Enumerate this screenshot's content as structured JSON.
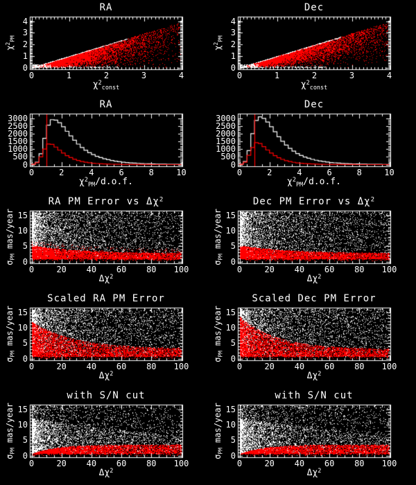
{
  "palette": {
    "background": "#000000",
    "foreground": "#ffffff",
    "highlight": "#ff0000"
  },
  "chart_data": [
    {
      "id": "ra-chi2-scatter",
      "type": "scatter",
      "title_parts": [
        {
          "t": "RA"
        }
      ],
      "xlabel_parts": [
        {
          "t": "χ"
        },
        {
          "sup": "2"
        },
        {
          "sub": "const"
        }
      ],
      "ylabel_parts": [
        {
          "t": "χ"
        },
        {
          "sup": "2"
        },
        {
          "sub": "PM"
        }
      ],
      "xlim": [
        0,
        4
      ],
      "ylim": [
        0,
        4
      ],
      "xticks": [
        0,
        1,
        2,
        3,
        4
      ],
      "yticks": [
        0,
        1,
        2,
        3,
        4
      ],
      "x_minor": 0.1,
      "y_minor": 0.1,
      "clouds": [
        {
          "kind": "diag",
          "color": "#ff0000",
          "n": 6000,
          "xScale": 0.75,
          "yPow": 0.5
        },
        {
          "kind": "diag",
          "color": "#ff0000",
          "n": 500,
          "xScale": 1.35,
          "yPow": 0.4
        },
        {
          "kind": "diagline",
          "color": "#ffffff",
          "n": 420,
          "xMax": 2.55
        },
        {
          "kind": "strip",
          "color": "#ffffff",
          "n": 120,
          "xMax": 2.3,
          "yMin": 0,
          "yMax": 0.12
        },
        {
          "kind": "strip",
          "color": "#ffffff",
          "n": 160,
          "xMax": 0.5,
          "yMin": 0,
          "yMax": 0.3
        }
      ]
    },
    {
      "id": "dec-chi2-scatter",
      "type": "scatter",
      "title_parts": [
        {
          "t": "Dec"
        }
      ],
      "xlabel_parts": [
        {
          "t": "χ"
        },
        {
          "sup": "2"
        },
        {
          "sub": "const"
        }
      ],
      "ylabel_parts": [
        {
          "t": "χ"
        },
        {
          "sup": "2"
        },
        {
          "sub": "PM"
        }
      ],
      "xlim": [
        0,
        4
      ],
      "ylim": [
        0,
        4
      ],
      "xticks": [
        0,
        1,
        2,
        3,
        4
      ],
      "yticks": [
        0,
        1,
        2,
        3,
        4
      ],
      "x_minor": 0.1,
      "y_minor": 0.1,
      "clouds": [
        {
          "kind": "diag",
          "color": "#ff0000",
          "n": 6000,
          "xScale": 0.85,
          "yPow": 0.42
        },
        {
          "kind": "diag",
          "color": "#ff0000",
          "n": 800,
          "xScale": 1.5,
          "yPow": 0.32
        },
        {
          "kind": "diagline",
          "color": "#ffffff",
          "n": 420,
          "xMax": 2.7
        },
        {
          "kind": "strip",
          "color": "#ffffff",
          "n": 140,
          "xMax": 2.3,
          "yMin": 0,
          "yMax": 0.12
        },
        {
          "kind": "strip",
          "color": "#ffffff",
          "n": 150,
          "xMax": 0.5,
          "yMin": 0,
          "yMax": 0.3
        }
      ]
    },
    {
      "id": "ra-chi2dof-histogram",
      "type": "bar",
      "title_parts": [
        {
          "t": "RA"
        }
      ],
      "xlabel_parts": [
        {
          "t": "χ"
        },
        {
          "sup": "2"
        },
        {
          "sub": "PM"
        },
        {
          "t": "/d.o.f."
        }
      ],
      "ylabel_parts": null,
      "xlim": [
        0,
        10
      ],
      "ylim": [
        0,
        3000
      ],
      "xticks": [
        0,
        2,
        4,
        6,
        8,
        10
      ],
      "yticks": [
        0,
        500,
        1000,
        1500,
        2000,
        2500,
        3000
      ],
      "x_minor": 0.5,
      "y_minor": 100,
      "vline": {
        "x": 1,
        "color": "#ff0000"
      },
      "histograms": [
        {
          "color": "#ffffff",
          "bin_start": 0,
          "bin_width": 0.25,
          "values": [
            20,
            150,
            700,
            1700,
            2550,
            2900,
            2870,
            2700,
            2450,
            2150,
            1850,
            1570,
            1320,
            1100,
            920,
            770,
            640,
            535,
            450,
            375,
            315,
            265,
            220,
            185,
            155,
            130,
            110,
            93,
            78,
            66,
            56,
            47,
            40,
            34,
            29,
            24,
            20,
            17,
            15,
            13
          ]
        },
        {
          "color": "#ff0000",
          "bin_start": 0,
          "bin_width": 0.25,
          "values": [
            15,
            120,
            500,
            1000,
            1330,
            1300,
            1130,
            930,
            740,
            580,
            450,
            345,
            265,
            200,
            152,
            116,
            88,
            67,
            51,
            39,
            30,
            23,
            17,
            13,
            10,
            8,
            6,
            5,
            4,
            3,
            2,
            2,
            1,
            1,
            1,
            1,
            0,
            0,
            0,
            0
          ]
        }
      ]
    },
    {
      "id": "dec-chi2dof-histogram",
      "type": "bar",
      "title_parts": [
        {
          "t": "Dec"
        }
      ],
      "xlabel_parts": [
        {
          "t": "χ"
        },
        {
          "sup": "2"
        },
        {
          "sub": "PM"
        },
        {
          "t": "/d.o.f."
        }
      ],
      "ylabel_parts": null,
      "xlim": [
        0,
        10
      ],
      "ylim": [
        0,
        3000
      ],
      "xticks": [
        0,
        2,
        4,
        6,
        8,
        10
      ],
      "yticks": [
        0,
        500,
        1000,
        1500,
        2000,
        2500,
        3000
      ],
      "x_minor": 0.5,
      "y_minor": 100,
      "vline": {
        "x": 1,
        "color": "#ff0000"
      },
      "histograms": [
        {
          "color": "#ffffff",
          "bin_start": 0,
          "bin_width": 0.25,
          "values": [
            25,
            200,
            900,
            2000,
            2850,
            3080,
            2980,
            2750,
            2450,
            2120,
            1800,
            1510,
            1260,
            1045,
            865,
            715,
            590,
            490,
            405,
            335,
            280,
            232,
            193,
            160,
            133,
            111,
            92,
            77,
            64,
            53,
            44,
            37,
            31,
            26,
            22,
            18,
            15,
            13,
            11,
            9
          ]
        },
        {
          "color": "#ff0000",
          "bin_start": 0,
          "bin_width": 0.25,
          "values": [
            20,
            150,
            600,
            1100,
            1420,
            1360,
            1160,
            940,
            740,
            575,
            440,
            335,
            255,
            192,
            145,
            109,
            82,
            62,
            47,
            35,
            27,
            20,
            15,
            11,
            9,
            7,
            5,
            4,
            3,
            2,
            2,
            1,
            1,
            1,
            0,
            0,
            0,
            0,
            0,
            0
          ]
        }
      ]
    },
    {
      "id": "ra-pm-error-vs-dchi2",
      "type": "scatter",
      "title_parts": [
        {
          "t": "RA PM Error vs Δχ"
        },
        {
          "sup": "2"
        }
      ],
      "xlabel_parts": [
        {
          "t": "Δχ"
        },
        {
          "sup": "2"
        }
      ],
      "ylabel_parts": [
        {
          "t": "σ"
        },
        {
          "sub": "PM"
        },
        {
          "t": " mas/year"
        }
      ],
      "xlim": [
        0,
        100
      ],
      "ylim": [
        0,
        15
      ],
      "xticks": [
        0,
        20,
        40,
        60,
        80,
        100
      ],
      "yticks": [
        0,
        5,
        10,
        15
      ],
      "x_minor": 5,
      "y_minor": 1,
      "clouds": [
        {
          "kind": "blob",
          "color": "#ffffff",
          "n": 1500,
          "xPow": 5,
          "xMax": 100,
          "yMax": 16,
          "taper": 0
        },
        {
          "kind": "env",
          "color": "#ffffff",
          "n": 3500,
          "xPow": 2.6,
          "yMin": 1.3,
          "yBase": 16.2,
          "yAmp": 0,
          "yTau": 1,
          "yPow": 1
        },
        {
          "kind": "env",
          "color": "#ff0000",
          "n": 7000,
          "xPow": 1.7,
          "yMin": 0.4,
          "yBase": 2.6,
          "yAmp": 2.6,
          "yTau": 35,
          "yPow": 1.3
        },
        {
          "kind": "env",
          "color": "#ff0000",
          "n": 300,
          "xPow": 1.5,
          "yMin": 2,
          "yBase": 4,
          "yAmp": 3,
          "yTau": 40,
          "yPow": 1
        },
        {
          "kind": "strip",
          "color": "#000000",
          "n": 1100,
          "xMax": 100,
          "yMin": 0.05,
          "yMax": 0.75
        }
      ]
    },
    {
      "id": "dec-pm-error-vs-dchi2",
      "type": "scatter",
      "title_parts": [
        {
          "t": "Dec PM Error vs Δχ"
        },
        {
          "sup": "2"
        }
      ],
      "xlabel_parts": [
        {
          "t": "Δχ"
        },
        {
          "sup": "2"
        }
      ],
      "ylabel_parts": [
        {
          "t": "σ"
        },
        {
          "sub": "PM"
        },
        {
          "t": " mas/year"
        }
      ],
      "xlim": [
        0,
        100
      ],
      "ylim": [
        0,
        15
      ],
      "xticks": [
        0,
        20,
        40,
        60,
        80,
        100
      ],
      "yticks": [
        0,
        5,
        10,
        15
      ],
      "x_minor": 5,
      "y_minor": 1,
      "clouds": [
        {
          "kind": "blob",
          "color": "#ffffff",
          "n": 1500,
          "xPow": 5,
          "xMax": 100,
          "yMax": 16,
          "taper": 0
        },
        {
          "kind": "env",
          "color": "#ffffff",
          "n": 3600,
          "xPow": 2.6,
          "yMin": 1.3,
          "yBase": 16.2,
          "yAmp": 0,
          "yTau": 1,
          "yPow": 1
        },
        {
          "kind": "env",
          "color": "#ff0000",
          "n": 7000,
          "xPow": 1.7,
          "yMin": 0.4,
          "yBase": 2.7,
          "yAmp": 2.5,
          "yTau": 35,
          "yPow": 1.3
        },
        {
          "kind": "strip",
          "color": "#000000",
          "n": 1100,
          "xMax": 100,
          "yMin": 0.05,
          "yMax": 0.75
        }
      ]
    },
    {
      "id": "scaled-ra-pm-error",
      "type": "scatter",
      "title_parts": [
        {
          "t": "Scaled RA PM Error"
        }
      ],
      "xlabel_parts": [
        {
          "t": "Δχ"
        },
        {
          "sup": "2"
        }
      ],
      "ylabel_parts": [
        {
          "t": "σ"
        },
        {
          "sub": "PM"
        },
        {
          "t": " mas/year"
        }
      ],
      "xlim": [
        0,
        100
      ],
      "ylim": [
        0,
        15
      ],
      "xticks": [
        0,
        20,
        40,
        60,
        80,
        100
      ],
      "yticks": [
        0,
        5,
        10,
        15
      ],
      "x_minor": 5,
      "y_minor": 1,
      "clouds": [
        {
          "kind": "blob",
          "color": "#ffffff",
          "n": 1800,
          "xPow": 4,
          "xMax": 100,
          "yMax": 16,
          "taper": 0
        },
        {
          "kind": "env",
          "color": "#ffffff",
          "n": 3200,
          "xPow": 2.2,
          "yMin": 0.4,
          "yBase": 16.2,
          "yAmp": 0,
          "yTau": 1,
          "yPow": 1
        },
        {
          "kind": "env",
          "color": "#ff0000",
          "n": 7000,
          "xPow": 1.9,
          "yMin": 0.2,
          "yBase": 3.2,
          "yAmp": 8.8,
          "yTau": 28,
          "yPow": 1.5
        },
        {
          "kind": "strip",
          "color": "#000000",
          "n": 1100,
          "xMax": 100,
          "yMin": 0.05,
          "yMax": 0.6
        }
      ]
    },
    {
      "id": "scaled-dec-pm-error",
      "type": "scatter",
      "title_parts": [
        {
          "t": "Scaled Dec PM Error"
        }
      ],
      "xlabel_parts": [
        {
          "t": "Δχ"
        },
        {
          "sup": "2"
        }
      ],
      "ylabel_parts": [
        {
          "t": "σ"
        },
        {
          "sub": "PM"
        },
        {
          "t": " mas/year"
        }
      ],
      "xlim": [
        0,
        100
      ],
      "ylim": [
        0,
        15
      ],
      "xticks": [
        0,
        20,
        40,
        60,
        80,
        100
      ],
      "yticks": [
        0,
        5,
        10,
        15
      ],
      "x_minor": 5,
      "y_minor": 1,
      "clouds": [
        {
          "kind": "blob",
          "color": "#ffffff",
          "n": 1800,
          "xPow": 4,
          "xMax": 100,
          "yMax": 16,
          "taper": 0
        },
        {
          "kind": "env",
          "color": "#ffffff",
          "n": 3200,
          "xPow": 2.2,
          "yMin": 0.4,
          "yBase": 16.2,
          "yAmp": 0,
          "yTau": 1,
          "yPow": 1
        },
        {
          "kind": "env",
          "color": "#ff0000",
          "n": 7200,
          "xPow": 1.9,
          "yMin": 0.2,
          "yBase": 3.0,
          "yAmp": 10.5,
          "yTau": 25,
          "yPow": 1.5
        },
        {
          "kind": "strip",
          "color": "#000000",
          "n": 1100,
          "xMax": 100,
          "yMin": 0.05,
          "yMax": 0.6
        }
      ]
    },
    {
      "id": "ra-pm-error-sn-cut",
      "type": "scatter",
      "title_parts": [
        {
          "t": "with S/N cut"
        }
      ],
      "xlabel_parts": [
        {
          "t": "Δχ"
        },
        {
          "sup": "2"
        }
      ],
      "ylabel_parts": [
        {
          "t": "σ"
        },
        {
          "sub": "PM"
        },
        {
          "t": " mas/year"
        }
      ],
      "xlim": [
        0,
        100
      ],
      "ylim": [
        0,
        15
      ],
      "xticks": [
        0,
        20,
        40,
        60,
        80,
        100
      ],
      "yticks": [
        0,
        5,
        10,
        15
      ],
      "x_minor": 5,
      "y_minor": 1,
      "clouds": [
        {
          "kind": "blob",
          "color": "#ffffff",
          "n": 3000,
          "xPow": 3.2,
          "xMax": 100,
          "yMax": 12,
          "taper": 0.5
        },
        {
          "kind": "env",
          "color": "#ffffff",
          "n": 2000,
          "xPow": 1.8,
          "yMin": 0.3,
          "yBase": 16.2,
          "yAmp": 0,
          "yTau": 1,
          "yPow": 1
        },
        {
          "kind": "env",
          "color": "#ff0000",
          "n": 6500,
          "xPow": 1.5,
          "yMin": 0.15,
          "yBase": 3.6,
          "yAmp": -3.1,
          "yTau": 16,
          "yPow": 1.25
        },
        {
          "kind": "strip",
          "color": "#000000",
          "n": 1000,
          "xMax": 100,
          "yMin": 0.05,
          "yMax": 0.5
        }
      ]
    },
    {
      "id": "dec-pm-error-sn-cut",
      "type": "scatter",
      "title_parts": [
        {
          "t": "with S/N cut"
        }
      ],
      "xlabel_parts": [
        {
          "t": "Δχ"
        },
        {
          "sup": "2"
        }
      ],
      "ylabel_parts": [
        {
          "t": "σ"
        },
        {
          "sub": "PM"
        },
        {
          "t": " mas/year"
        }
      ],
      "xlim": [
        0,
        100
      ],
      "ylim": [
        0,
        15
      ],
      "xticks": [
        0,
        20,
        40,
        60,
        80,
        100
      ],
      "yticks": [
        0,
        5,
        10,
        15
      ],
      "x_minor": 5,
      "y_minor": 1,
      "clouds": [
        {
          "kind": "blob",
          "color": "#ffffff",
          "n": 3000,
          "xPow": 3.2,
          "xMax": 100,
          "yMax": 12,
          "taper": 0.5
        },
        {
          "kind": "env",
          "color": "#ffffff",
          "n": 2100,
          "xPow": 1.8,
          "yMin": 0.3,
          "yBase": 16.2,
          "yAmp": 0,
          "yTau": 1,
          "yPow": 1
        },
        {
          "kind": "env",
          "color": "#ff0000",
          "n": 6500,
          "xPow": 1.5,
          "yMin": 0.15,
          "yBase": 3.6,
          "yAmp": -3.1,
          "yTau": 16,
          "yPow": 1.25
        },
        {
          "kind": "strip",
          "color": "#000000",
          "n": 1000,
          "xMax": 100,
          "yMin": 0.05,
          "yMax": 0.5
        }
      ]
    }
  ]
}
